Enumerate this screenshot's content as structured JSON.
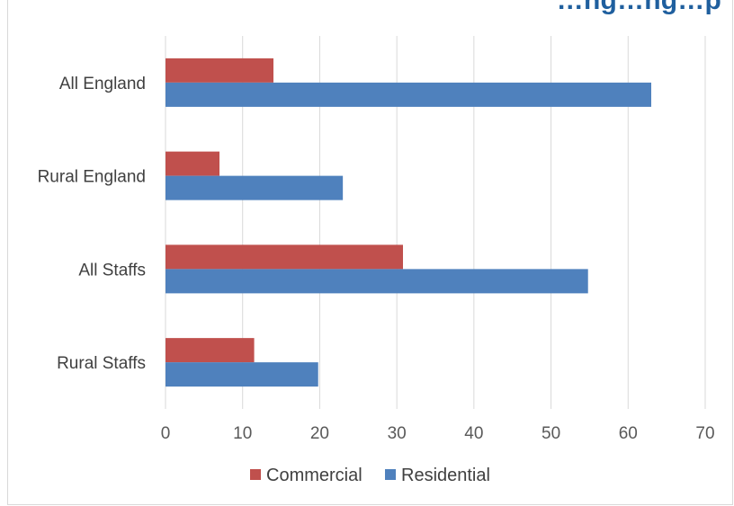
{
  "chart_data": {
    "type": "bar",
    "orientation": "horizontal",
    "title": "…ng…ng…p",
    "categories": [
      "All England",
      "Rural England",
      "All Staffs",
      "Rural Staffs"
    ],
    "series": [
      {
        "name": "Commercial",
        "color": "#c0504d",
        "values": [
          14,
          7,
          30.8,
          11.5
        ]
      },
      {
        "name": "Residential",
        "color": "#4f81bd",
        "values": [
          63,
          23,
          54.8,
          19.8
        ]
      }
    ],
    "xlim": [
      0,
      70
    ],
    "xticks": [
      0,
      10,
      20,
      30,
      40,
      50,
      60,
      70
    ],
    "grid": true,
    "legend_position": "bottom"
  }
}
